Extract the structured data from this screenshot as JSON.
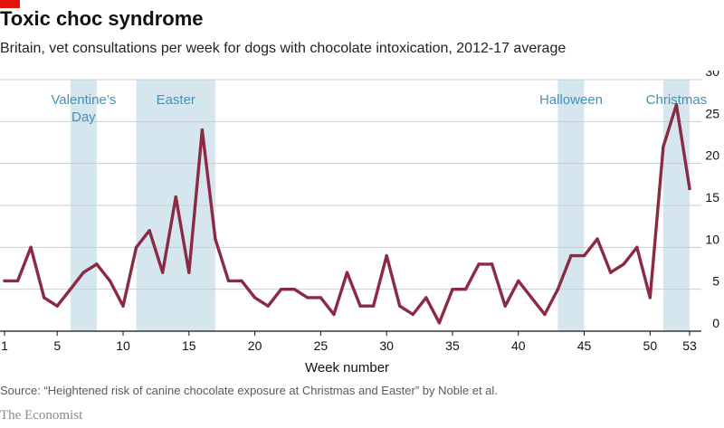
{
  "header": {
    "title": "Toxic choc syndrome",
    "subtitle": "Britain, vet consultations per week for dogs with chocolate intoxication, 2012-17 average"
  },
  "footer": {
    "source": "Source: “Heightened risk of canine chocolate exposure at Christmas and Easter” by Noble et al.",
    "brand": "The Economist"
  },
  "chart_data": {
    "type": "line",
    "title": "Toxic choc syndrome",
    "subtitle": "Britain, vet consultations per week for dogs with chocolate intoxication, 2012-17 average",
    "xlabel": "Week number",
    "ylabel": "",
    "xlim": [
      1,
      53
    ],
    "ylim": [
      0,
      30
    ],
    "x_ticks": [
      1,
      5,
      10,
      15,
      20,
      25,
      30,
      35,
      40,
      45,
      50,
      53
    ],
    "y_ticks": [
      0,
      5,
      10,
      15,
      20,
      25,
      30
    ],
    "grid": true,
    "y_axis_side": "right",
    "line_color": "#8b2a43",
    "band_color": "#d6e6ef",
    "band_label_color": "#4a8fb4",
    "shaded_periods": [
      {
        "label_lines": [
          "Valentine’s",
          "Day"
        ],
        "start": 6,
        "end": 8
      },
      {
        "label_lines": [
          "Easter"
        ],
        "start": 11,
        "end": 17
      },
      {
        "label_lines": [
          "Halloween"
        ],
        "start": 43,
        "end": 45
      },
      {
        "label_lines": [
          "Christmas"
        ],
        "start": 51,
        "end": 53
      }
    ],
    "x": [
      1,
      2,
      3,
      4,
      5,
      6,
      7,
      8,
      9,
      10,
      11,
      12,
      13,
      14,
      15,
      16,
      17,
      18,
      19,
      20,
      21,
      22,
      23,
      24,
      25,
      26,
      27,
      28,
      29,
      30,
      31,
      32,
      33,
      34,
      35,
      36,
      37,
      38,
      39,
      40,
      41,
      42,
      43,
      44,
      45,
      46,
      47,
      48,
      49,
      50,
      51,
      52,
      53
    ],
    "values": [
      6,
      6,
      10,
      4,
      3,
      5,
      7,
      8,
      6,
      3,
      10,
      12,
      7,
      16,
      7,
      24,
      11,
      6,
      6,
      4,
      3,
      5,
      5,
      4,
      4,
      2,
      7,
      3,
      3,
      9,
      3,
      2,
      4,
      1,
      5,
      5,
      8,
      8,
      3,
      6,
      4,
      2,
      5,
      9,
      9,
      11,
      7,
      8,
      10,
      4,
      22,
      27,
      17
    ]
  }
}
